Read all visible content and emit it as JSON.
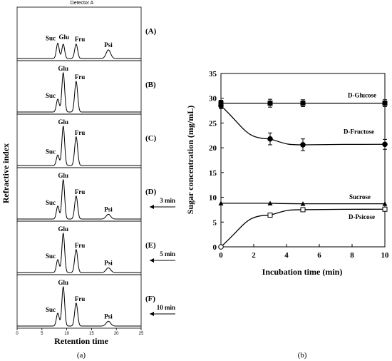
{
  "chart_data": [
    {
      "type": "line",
      "panel_label": "(a)",
      "detector_title": "Detector A",
      "xlabel": "Retention time",
      "ylabel": "Refractive index",
      "xlim": [
        0,
        25
      ],
      "xticks": [
        0,
        5,
        10,
        15,
        20,
        25
      ],
      "peak_positions": {
        "Suc": 8.2,
        "Glu": 9.3,
        "Fru": 11.9,
        "Psi": 18.4
      },
      "panels": [
        {
          "label": "(A)",
          "peak_labels": [
            "Suc",
            "Glu",
            "Fru",
            "Psi"
          ],
          "heights": {
            "Suc": 0.32,
            "Glu": 0.3,
            "Fru": 0.3,
            "Psi": 0.18
          },
          "annotation": ""
        },
        {
          "label": "(B)",
          "peak_labels": [
            "Suc",
            "Glu",
            "Fru"
          ],
          "heights": {
            "Suc": 0.27,
            "Glu": 0.82,
            "Fru": 0.64,
            "Psi": 0.0
          },
          "annotation": ""
        },
        {
          "label": "(C)",
          "peak_labels": [
            "Suc",
            "Glu",
            "Fru"
          ],
          "heights": {
            "Suc": 0.22,
            "Glu": 0.82,
            "Fru": 0.6,
            "Psi": 0.0
          },
          "annotation": ""
        },
        {
          "label": "(D)",
          "peak_labels": [
            "Suc",
            "Glu",
            "Fru",
            "Psi"
          ],
          "heights": {
            "Suc": 0.27,
            "Glu": 0.82,
            "Fru": 0.48,
            "Psi": 0.1
          },
          "annotation": "3 min"
        },
        {
          "label": "(E)",
          "peak_labels": [
            "Suc",
            "Glu",
            "Fru",
            "Psi"
          ],
          "heights": {
            "Suc": 0.27,
            "Glu": 0.82,
            "Fru": 0.48,
            "Psi": 0.1
          },
          "annotation": "5 min"
        },
        {
          "label": "(F)",
          "peak_labels": [
            "Suc",
            "Glu",
            "Fru",
            "Psi"
          ],
          "heights": {
            "Suc": 0.27,
            "Glu": 0.82,
            "Fru": 0.48,
            "Psi": 0.1
          },
          "annotation": "10 min"
        }
      ]
    },
    {
      "type": "line",
      "panel_label": "(b)",
      "xlabel": "Incubation time (min)",
      "ylabel": "Sugar concentration (mg/mL)",
      "xlim": [
        0,
        10
      ],
      "ylim": [
        0,
        35
      ],
      "xticks": [
        0,
        2,
        4,
        6,
        8,
        10
      ],
      "yticks": [
        0,
        5,
        10,
        15,
        20,
        25,
        30,
        35
      ],
      "series": [
        {
          "name": "D-Glucose",
          "marker": "square-filled",
          "x": [
            0,
            3,
            5,
            10
          ],
          "y": [
            29.0,
            29.0,
            29.0,
            29.0
          ],
          "err": [
            0.6,
            0.8,
            0.7,
            0.7
          ]
        },
        {
          "name": "D-Fructose",
          "marker": "circle-filled",
          "x": [
            0,
            3,
            5,
            10
          ],
          "y": [
            28.5,
            21.8,
            20.6,
            20.7
          ],
          "err": [
            0.6,
            1.2,
            1.2,
            1.0
          ]
        },
        {
          "name": "Sucrose",
          "marker": "triangle-filled",
          "x": [
            0,
            3,
            5,
            10
          ],
          "y": [
            8.8,
            8.8,
            8.7,
            8.7
          ],
          "err": [
            0,
            0,
            0,
            0
          ]
        },
        {
          "name": "D-Psicose",
          "marker": "square-open",
          "x": [
            0,
            3,
            5,
            10
          ],
          "y": [
            0,
            6.4,
            7.5,
            7.6
          ],
          "err": [
            0,
            0.2,
            0.2,
            0.2
          ]
        }
      ]
    }
  ]
}
